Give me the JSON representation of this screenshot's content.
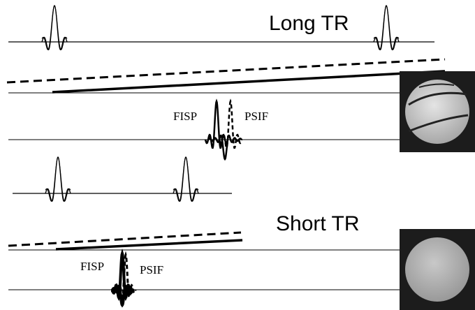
{
  "top_panel": {
    "title": "Long TR",
    "echo_labels": [
      "FISP",
      "PSIF"
    ]
  },
  "bottom_panel": {
    "title": "Short TR",
    "echo_labels": [
      "FISP",
      "PSIF"
    ]
  }
}
